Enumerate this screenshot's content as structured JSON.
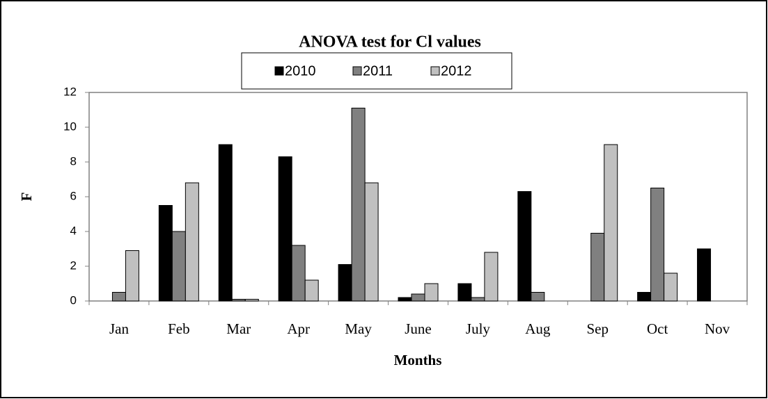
{
  "chart_data": {
    "type": "bar",
    "title": "ANOVA test for Cl values",
    "x_label": "Months",
    "y_label": "F",
    "categories": [
      "Jan",
      "Feb",
      "Mar",
      "Apr",
      "May",
      "June",
      "July",
      "Aug",
      "Sep",
      "Oct",
      "Nov"
    ],
    "series": [
      {
        "name": "2010",
        "color": "#000000",
        "values": [
          0,
          5.5,
          9.0,
          8.3,
          2.1,
          0.2,
          1.0,
          6.3,
          0,
          0.5,
          3.0
        ]
      },
      {
        "name": "2011",
        "color": "#808080",
        "values": [
          0.5,
          4.0,
          0.1,
          3.2,
          11.1,
          0.4,
          0.2,
          0.5,
          3.9,
          6.5,
          0
        ]
      },
      {
        "name": "2012",
        "color": "#c0c0c0",
        "values": [
          2.9,
          6.8,
          0.1,
          1.2,
          6.8,
          1.0,
          2.8,
          0,
          9.0,
          1.6,
          0
        ]
      }
    ],
    "ylim": [
      0,
      12
    ],
    "yticks": [
      0,
      2,
      4,
      6,
      8,
      10,
      12
    ],
    "legend": "top"
  }
}
